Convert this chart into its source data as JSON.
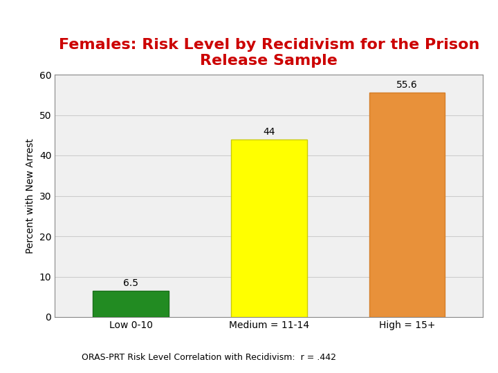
{
  "title": "Females: Risk Level by Recidivism for the Prison\nRelease Sample",
  "title_color": "#cc0000",
  "title_fontsize": 16,
  "categories": [
    "Low 0-10",
    "Medium = 11-14",
    "High = 15+"
  ],
  "values": [
    6.5,
    44.0,
    55.6
  ],
  "bar_colors": [
    "#228B22",
    "#FFFF00",
    "#E8913A"
  ],
  "bar_edgecolors": [
    "#1a6e1a",
    "#cccc00",
    "#d47d28"
  ],
  "ylabel": "Percent with New Arrest",
  "ylabel_fontsize": 10,
  "ylim": [
    0,
    60
  ],
  "yticks": [
    0,
    10,
    20,
    30,
    40,
    50,
    60
  ],
  "xtick_fontsize": 10,
  "ytick_fontsize": 10,
  "value_labels": [
    "6.5",
    "44",
    "55.6"
  ],
  "value_label_fontsize": 10,
  "footer": "ORAS-PRT Risk Level Correlation with Recidivism:  r = .442",
  "footer_fontsize": 9,
  "background_color": "#ffffff",
  "plot_bg_color": "#f0f0f0",
  "grid_color": "#cccccc",
  "bar_width": 0.55
}
